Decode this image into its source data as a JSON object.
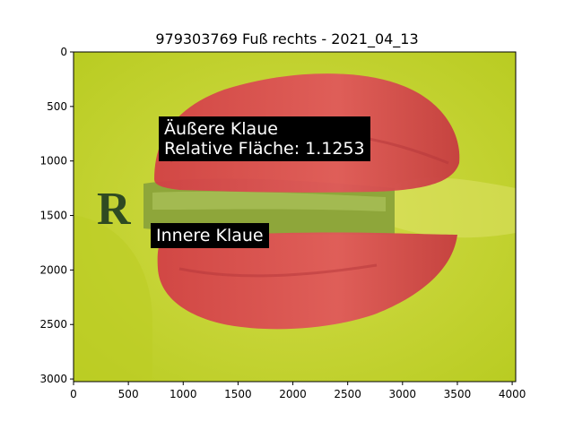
{
  "title": "979303769 Fuß rechts - 2021_04_13",
  "image_axes": {
    "x_range": [
      0,
      4032
    ],
    "y_range": [
      3024,
      0
    ],
    "x_ticks": [
      0,
      500,
      1000,
      1500,
      2000,
      2500,
      3000,
      3500,
      4000
    ],
    "y_ticks": [
      0,
      500,
      1000,
      1500,
      2000,
      2500,
      3000
    ]
  },
  "annotations": {
    "outer": {
      "line1": "Äußere Klaue",
      "line2": "Relative Fläche: 1.1253"
    },
    "inner": {
      "line1": "Innere Klaue"
    }
  },
  "photo": {
    "marker_letter": "R",
    "background_color": "#c9d62f",
    "overlay_color": "#d9464a"
  }
}
